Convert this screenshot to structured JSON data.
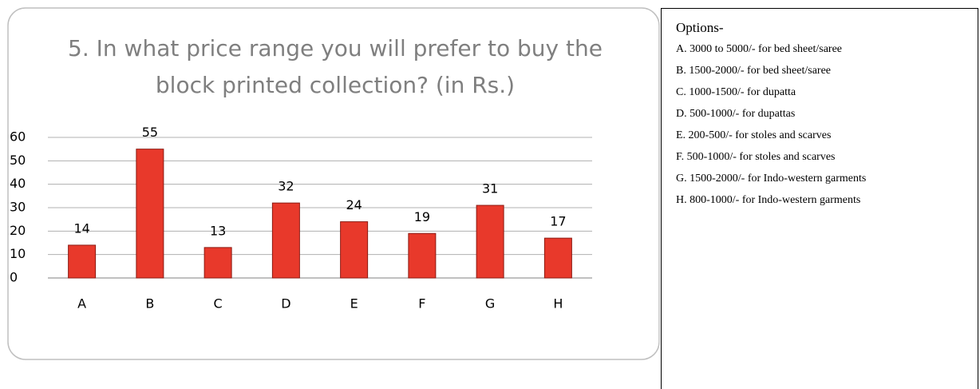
{
  "chart_data": {
    "type": "bar",
    "title": "5. In what price range you will prefer to buy the block printed collection? (in Rs.)",
    "categories": [
      "A",
      "B",
      "C",
      "D",
      "E",
      "F",
      "G",
      "H"
    ],
    "values": [
      14,
      55,
      13,
      32,
      24,
      19,
      31,
      17
    ],
    "color": "#e8392b",
    "ylim": [
      0,
      60
    ],
    "yticks": [
      0,
      10,
      20,
      30,
      40,
      50,
      60
    ],
    "grid": true
  },
  "options": {
    "title": "Options-",
    "items": [
      "A. 3000 to 5000/- for bed sheet/saree",
      "B. 1500-2000/- for bed sheet/saree",
      "C. 1000-1500/- for dupatta",
      "D. 500-1000/- for dupattas",
      "E. 200-500/- for stoles and scarves",
      "F. 500-1000/- for stoles and scarves",
      "G. 1500-2000/- for Indo-western garments",
      "H. 800-1000/- for Indo-western garments"
    ]
  }
}
